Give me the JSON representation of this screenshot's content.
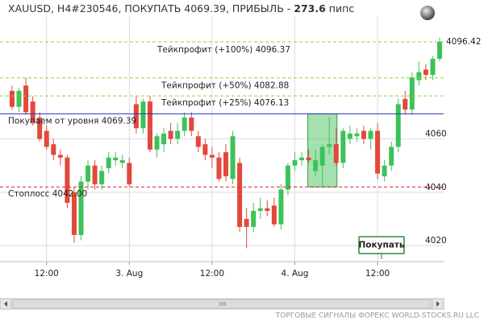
{
  "chart_data": {
    "type": "candlestick",
    "title": "XAUUSD, H4#230546, ПОКУПАТЬ 4069.39, ПРИБЫЛЬ -",
    "profit": 273.6,
    "profit_unit": "пипс",
    "categories": [
      null,
      null,
      null,
      null,
      null,
      "12:00",
      null,
      null,
      null,
      null,
      null,
      null,
      null,
      null,
      null,
      null,
      null,
      "3. Aug",
      null,
      null,
      null,
      null,
      null,
      null,
      null,
      null,
      null,
      null,
      null,
      "12:00",
      null,
      null,
      null,
      null,
      null,
      null,
      null,
      null,
      null,
      null,
      null,
      "4. Aug",
      null,
      null,
      null,
      null,
      null,
      null,
      null,
      null,
      null,
      null,
      null,
      "12:00",
      null,
      null,
      null,
      null,
      null,
      null,
      null,
      null,
      null
    ],
    "open": [
      4078,
      4072,
      4080,
      4074,
      4068,
      4063,
      4058,
      4054,
      4053,
      4040,
      4024,
      4044,
      4050,
      4043,
      4049,
      4052,
      4051,
      4051,
      4073,
      4064,
      4074,
      4056,
      4058,
      4063,
      4060,
      4063,
      4068,
      4061,
      4058,
      4054,
      4053,
      4055,
      4045,
      4051,
      4030,
      4027,
      4033,
      4034,
      4035,
      4028,
      4041,
      4050,
      4052,
      4053,
      4048,
      4050,
      4057,
      4058,
      4051,
      4060,
      4061,
      4063,
      4060,
      4063,
      4046,
      4050,
      4057,
      4075,
      4071,
      4082,
      4086,
      4084,
      4090
    ],
    "high": [
      4080,
      4079,
      4083,
      4076,
      4070,
      4065,
      4060,
      4056,
      4054,
      4042,
      4046,
      4052,
      4052,
      4050,
      4055,
      4055,
      4054,
      4053,
      4076,
      4075,
      4076,
      4062,
      4064,
      4066,
      4066,
      4070,
      4070,
      4063,
      4060,
      4057,
      4055,
      4058,
      4063,
      4053,
      4034,
      4036,
      4038,
      4037,
      4038,
      4043,
      4051,
      4055,
      4055,
      4056,
      4056,
      4058,
      4068,
      4064,
      4064,
      4065,
      4064,
      4065,
      4064,
      4066,
      4052,
      4059,
      4075,
      4078,
      4085,
      4089,
      4088,
      4091,
      4098
    ],
    "low": [
      4071,
      4070,
      4069,
      4065,
      4059,
      4056,
      4052,
      4050,
      4034,
      4021,
      4022,
      4041,
      4041,
      4041,
      4047,
      4050,
      4049,
      4042,
      4062,
      4062,
      4055,
      4053,
      4055,
      4058,
      4058,
      4061,
      4061,
      4055,
      4052,
      4049,
      4044,
      4044,
      4043,
      4025,
      4019,
      4025,
      4030,
      4031,
      4027,
      4026,
      4039,
      4048,
      4050,
      4051,
      4046,
      4042,
      4054,
      4050,
      4049,
      4058,
      4059,
      4058,
      4056,
      4045,
      4044,
      4048,
      4055,
      4069,
      4069,
      4080,
      4082,
      4082,
      4089
    ],
    "close": [
      4072,
      4078,
      4070,
      4066,
      4060,
      4057,
      4054,
      4053,
      4036,
      4024,
      4044,
      4050,
      4043,
      4048,
      4053,
      4053,
      4052,
      4043,
      4064,
      4074,
      4056,
      4061,
      4062,
      4060,
      4063,
      4068,
      4063,
      4057,
      4054,
      4053,
      4045,
      4046,
      4061,
      4027,
      4027,
      4033,
      4034,
      4033,
      4028,
      4041,
      4050,
      4052,
      4053,
      4052,
      4052,
      4057,
      4058,
      4051,
      4063,
      4062,
      4062,
      4060,
      4063,
      4047,
      4050,
      4057,
      4073,
      4071,
      4083,
      4085,
      4084,
      4090,
      4096.42
    ],
    "up_color": "#3cc25a",
    "down_color": "#e2483c",
    "levels": [
      {
        "label": "Тейкпрофит (+100%) 4096.37",
        "value": 4096.37,
        "color": "#9acd32",
        "style": "dashed"
      },
      {
        "label": "Тейкпрофит (+50%) 4082.88",
        "value": 4082.88,
        "color": "#9acd32",
        "style": "dashed"
      },
      {
        "label": "Тейкпрофит (+25%) 4076.13",
        "value": 4076.13,
        "color": "#9acd32",
        "style": "dashed"
      },
      {
        "label": "Покупаем от уровня 4069.39",
        "value": 4069.39,
        "color": "#2233bb",
        "style": "solid"
      },
      {
        "label": "Стоплосс 4042.00",
        "value": 4042.0,
        "color": "#d22",
        "style": "dashed"
      }
    ],
    "ylim": [
      4014,
      4103
    ],
    "yticks": [
      4020,
      4040,
      4060
    ],
    "grid": true,
    "button": "Покупать",
    "footer": "ТОРГОВЫЕ СИГНАЛЫ ФОРЕКС WORLD-STOCKS.RU LLC"
  }
}
